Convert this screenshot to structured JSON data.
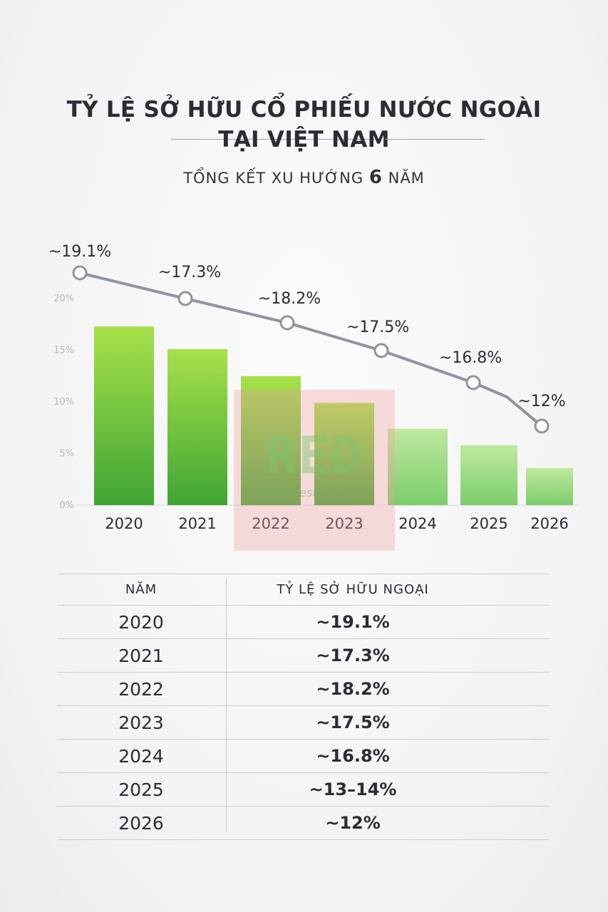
{
  "header": {
    "title_line1": "TỶ LỆ SỞ HỮU CỔ PHIẾU NƯỚC NGOÀI",
    "title_line2": "TẠI VIỆT NAM",
    "subtitle_prefix": "TỔNG KẾT XU HƯỚNG",
    "subtitle_number": "6",
    "subtitle_suffix": "NĂM"
  },
  "watermark": {
    "big": "RED",
    "small": "Investment"
  },
  "colors": {
    "bar_top": "#a8e04a",
    "bar_bottom": "#3fa534",
    "line": "#8f959c",
    "text": "#2a2d33"
  },
  "chart_data": {
    "type": "bar",
    "categories": [
      "2020",
      "2021",
      "2022",
      "2023",
      "2024",
      "2025",
      "2026"
    ],
    "values": [
      17.3,
      15.1,
      12.5,
      9.9,
      7.4,
      5.8,
      3.6
    ],
    "y_ticks": [
      "0%",
      "5%",
      "10%",
      "15%",
      "20%"
    ],
    "ylim": [
      0,
      20
    ],
    "grid": false,
    "line_series": {
      "values": [
        19.1,
        17.3,
        18.2,
        17.5,
        16.8,
        13.5,
        12
      ],
      "labels": [
        "~19.1%",
        "~17.3%",
        "~18.2%",
        "~17.5%",
        "~16.8%",
        "",
        "~12%"
      ]
    }
  },
  "table": {
    "header": {
      "year": "NĂM",
      "value": "TỶ LỆ SỞ HỮU NGOẠI"
    },
    "rows": [
      {
        "year": "2020",
        "value": "~19.1%"
      },
      {
        "year": "2021",
        "value": "~17.3%"
      },
      {
        "year": "2022",
        "value": "~18.2%"
      },
      {
        "year": "2023",
        "value": "~17.5%"
      },
      {
        "year": "2024",
        "value": "~16.8%"
      },
      {
        "year": "2025",
        "value": "~13–14%"
      },
      {
        "year": "2026",
        "value": "~12%"
      }
    ]
  }
}
